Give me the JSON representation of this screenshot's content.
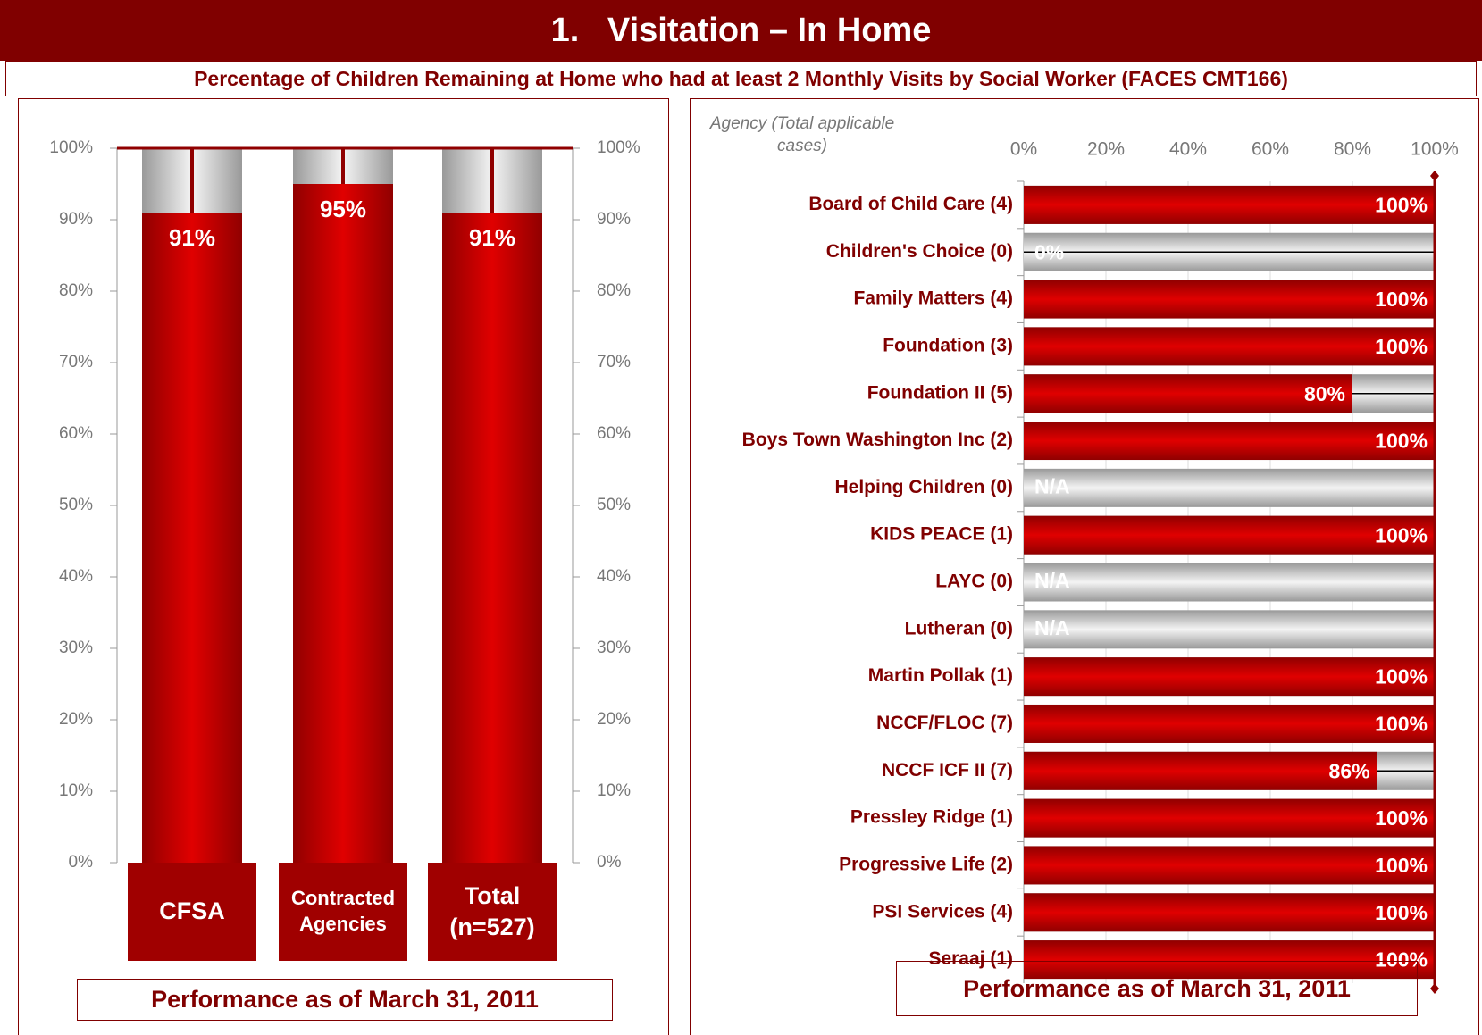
{
  "title": "1.   Visitation – In Home",
  "subtitle": "Percentage of Children Remaining at Home who had at least 2 Monthly Visits by Social Worker (FACES CMT166)",
  "chart_data": [
    {
      "type": "bar",
      "categories": [
        "CFSA",
        "Contracted Agencies",
        "Total (n=527)"
      ],
      "values": [
        91,
        95,
        91
      ],
      "value_labels": [
        "91%",
        "95%",
        "91%"
      ],
      "color": "#e00000",
      "ylim": [
        0,
        100
      ],
      "yticks": [
        {
          "value": 0,
          "label": "0%"
        },
        {
          "value": 10,
          "label": "10%"
        },
        {
          "value": 20,
          "label": "20%"
        },
        {
          "value": 30,
          "label": "30%"
        },
        {
          "value": 40,
          "label": "40%"
        },
        {
          "value": 50,
          "label": "50%"
        },
        {
          "value": 60,
          "label": "60%"
        },
        {
          "value": 70,
          "label": "70%"
        },
        {
          "value": 80,
          "label": "80%"
        },
        {
          "value": 90,
          "label": "90%"
        },
        {
          "value": 100,
          "label": "100%"
        }
      ],
      "footnote": "Performance as of March 31, 2011"
    },
    {
      "type": "barh",
      "axis_title": "Agency (Total applicable cases)",
      "categories": [
        "Board of Child Care (4)",
        "Children's Choice (0)",
        "Family Matters (4)",
        "Foundation (3)",
        "Foundation II (5)",
        "Boys Town Washington Inc (2)",
        "Helping Children (0)",
        "KIDS PEACE (1)",
        "LAYC (0)",
        "Lutheran (0)",
        "Martin Pollak (1)",
        "NCCF/FLOC (7)",
        "NCCF ICF II (7)",
        "Pressley Ridge (1)",
        "Progressive Life (2)",
        "PSI Services (4)",
        "Seraaj (1)"
      ],
      "values": [
        100,
        0,
        100,
        100,
        80,
        100,
        null,
        100,
        null,
        null,
        100,
        100,
        86,
        100,
        100,
        100,
        100
      ],
      "value_labels": [
        "100%",
        "0%",
        "100%",
        "100%",
        "80%",
        "100%",
        "N/A",
        "100%",
        "N/A",
        "N/A",
        "100%",
        "100%",
        "86%",
        "100%",
        "100%",
        "100%",
        "100%"
      ],
      "color": "#e00000",
      "xlim": [
        0,
        100
      ],
      "xticks": [
        {
          "value": 0,
          "label": "0%"
        },
        {
          "value": 20,
          "label": "20%"
        },
        {
          "value": 40,
          "label": "40%"
        },
        {
          "value": 60,
          "label": "60%"
        },
        {
          "value": 80,
          "label": "80%"
        },
        {
          "value": 100,
          "label": "100%"
        }
      ],
      "grid": true,
      "footnote": "Performance as of March 31, 2011"
    }
  ]
}
